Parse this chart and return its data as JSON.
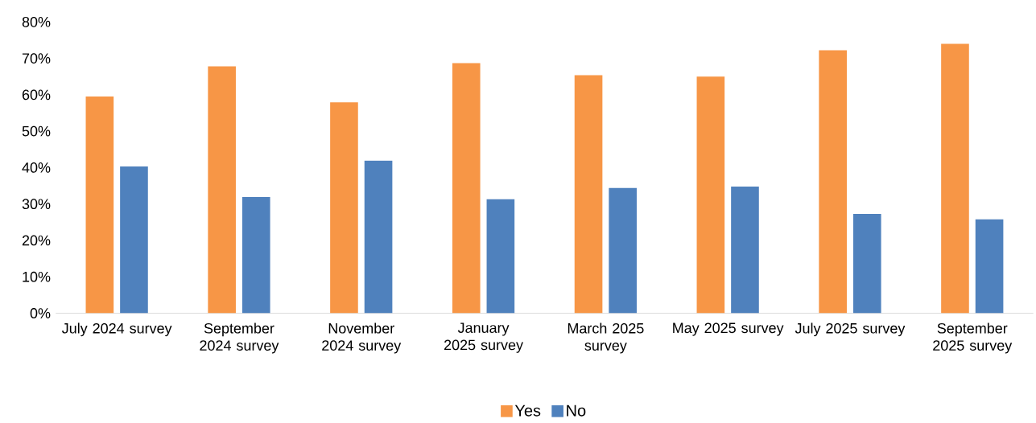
{
  "chart_data": {
    "type": "bar",
    "categories": [
      "July 2024 survey",
      "September 2024 survey",
      "November 2024 survey",
      "January 2025 survey",
      "March 2025 survey",
      "May 2025 survey",
      "July 2025 survey",
      "September 2025 survey"
    ],
    "series": [
      {
        "name": "Yes",
        "color": "#f79646",
        "values": [
          59.5,
          67.8,
          57.9,
          68.7,
          65.4,
          65,
          72.2,
          74
        ]
      },
      {
        "name": "No",
        "color": "#4f81bd",
        "values": [
          40.3,
          31.9,
          41.9,
          31.3,
          34.4,
          34.8,
          27.3,
          25.8
        ]
      }
    ],
    "ylim": [
      0,
      80
    ],
    "yticks": [
      {
        "value": 0,
        "label": "0%"
      },
      {
        "value": 10,
        "label": "10%"
      },
      {
        "value": 20,
        "label": "20%"
      },
      {
        "value": 30,
        "label": "30%"
      },
      {
        "value": 40,
        "label": "40%"
      },
      {
        "value": 50,
        "label": "50%"
      },
      {
        "value": 60,
        "label": "60%"
      },
      {
        "value": 70,
        "label": "70%"
      },
      {
        "value": 80,
        "label": "80%"
      }
    ],
    "legend": "bottom"
  }
}
